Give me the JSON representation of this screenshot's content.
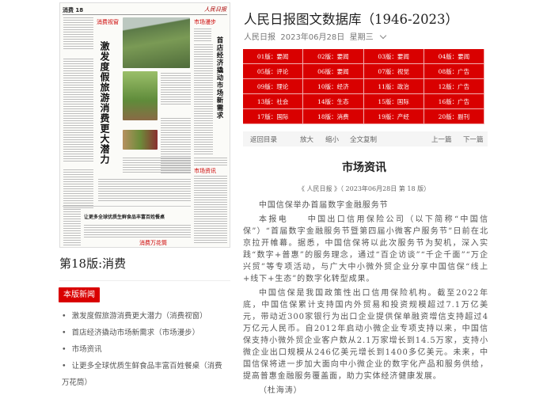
{
  "paper_thumbnail": {
    "header": "消费 18",
    "masthead": "人民日报",
    "main_headline": "激发度假旅游消费更大潜力",
    "right_headline": "首店经济撬动市场新需求",
    "bottom_headline": "让更多全球优质生鲜食品丰富百姓餐桌",
    "tags": [
      "消费视窗",
      "市场漫步",
      "市场资讯",
      "消费万花筒"
    ]
  },
  "edition_title": "第18版:消费",
  "news_button": "本版新闻",
  "news_list": [
    "激发度假旅游消费更大潜力（消费视窗）",
    "首店经济撬动市场新需求（市场漫步）",
    "市场资讯",
    "让更多全球优质生鲜食品丰富百姓餐桌（消费万花筒）"
  ],
  "header": {
    "title": "人民日报图文数据库（1946-2023）",
    "paper": "人民日报",
    "date": "2023年06月28日",
    "weekday": "星期三"
  },
  "editions": [
    "01版：要闻",
    "02版：要闻",
    "03版：要闻",
    "04版：要闻",
    "05版：评论",
    "06版：要闻",
    "07版：视觉",
    "08版：广告",
    "09版：理论",
    "10版：经济",
    "11版：政治",
    "12版：广告",
    "13版：社会",
    "14版：生态",
    "15版：国际",
    "16版：广告",
    "17版：国际",
    "18版：消费",
    "19版：产经",
    "20版：副刊"
  ],
  "toolbar": {
    "back": "返回目录",
    "zoom_in": "放大",
    "zoom_out": "缩小",
    "copy": "全文复制",
    "prev": "上一篇",
    "next": "下一篇"
  },
  "article": {
    "title": "市场资讯",
    "byline": "《 人民日报 》（ 2023年06月28日   第 18 版）",
    "headline": "中国信保举办首届数字金融服务节",
    "paragraphs": [
      "本报电　　中国出口信用保险公司（以下简称“中国信保”）“首届数字金融服务节暨第四届小微客户服务节”日前在北京拉开帷幕。据悉，中国信保将以此次服务节为契机，深入实践“数字+普惠”的服务理念，通过“百企访谈”“千企千面”“万企兴贸”等专项活动，与广大中小微外贸企业分享中国信保“线上+线下+生态”的数字化转型成果。",
      "中国信保是我国政策性出口信用保险机构。截至2022年底，中国信保累计支持国内外贸易和投资规模超过7.1万亿美元，带动近300家银行为出口企业提供保单融资增信支持超过4万亿元人民币。自2012年启动小微企业专项支持以来，中国信保支持小微外贸企业客户数从2.1万家增长到14.5万家，支持小微企业出口规模从246亿美元增长到1400多亿美元。未来，中国信保将进一步加大面向中小微企业的数字化产品和服务供给，提高普惠金融服务覆盖面，助力实体经济健康发展。"
    ],
    "author": "（杜海涛）"
  },
  "colors": {
    "accent": "#d90000"
  }
}
